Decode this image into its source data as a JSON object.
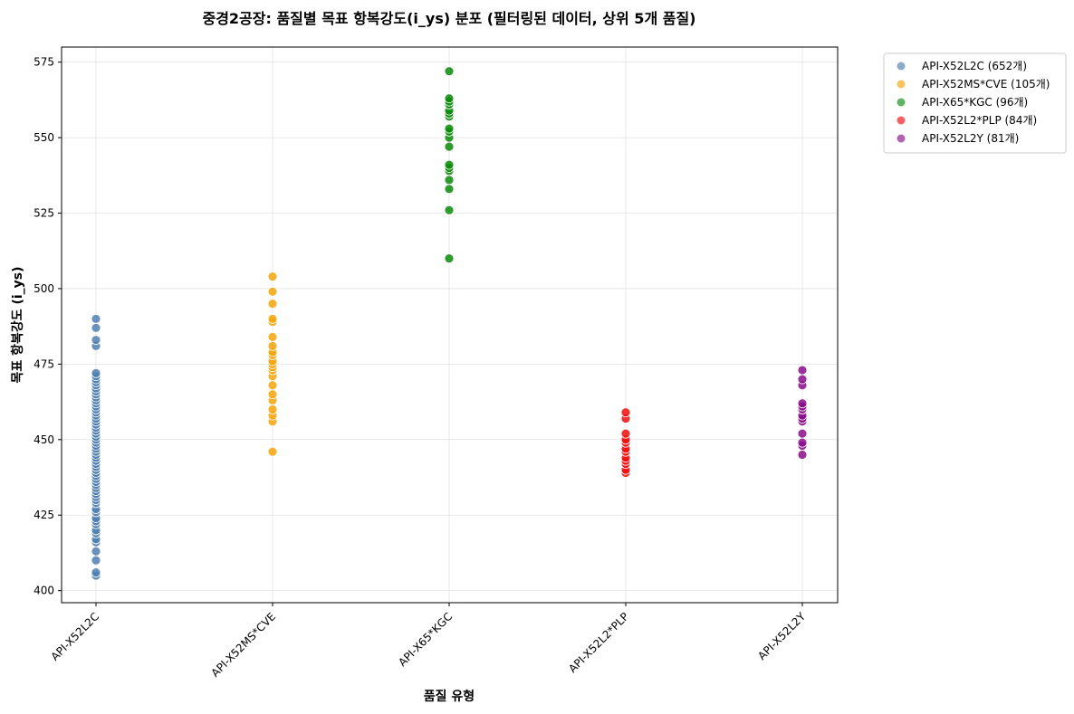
{
  "chart_data": {
    "type": "scatter",
    "title": "중경2공장: 품질별 목표 항복강도(i_ys) 분포 (필터링된 데이터, 상위 5개 품질)",
    "xlabel": "품질 유형",
    "ylabel": "목표 항복강도 (i_ys)",
    "categories": [
      "API-X52L2C",
      "API-X52MS*CVE",
      "API-X65*KGC",
      "API-X52L2*PLP",
      "API-X52L2Y"
    ],
    "ylim": [
      396,
      580
    ],
    "yticks": [
      400,
      425,
      450,
      475,
      500,
      525,
      550,
      575
    ],
    "grid": true,
    "legend_position": "outside-top-right",
    "series": [
      {
        "name": "API-X52L2C (652개)",
        "category": "API-X52L2C",
        "color": "#4f7fb0",
        "values": [
          405,
          406,
          410,
          413,
          416,
          417,
          419,
          420,
          422,
          423,
          424,
          426,
          427,
          429,
          430,
          431,
          432,
          433,
          434,
          435,
          436,
          437,
          438,
          439,
          440,
          441,
          442,
          443,
          444,
          445,
          446,
          447,
          448,
          449,
          450,
          451,
          452,
          453,
          454,
          455,
          456,
          457,
          458,
          459,
          460,
          461,
          462,
          463,
          464,
          465,
          466,
          467,
          468,
          469,
          470,
          471,
          472,
          481,
          483,
          487,
          490
        ]
      },
      {
        "name": "API-X52MS*CVE (105개)",
        "category": "API-X52MS*CVE",
        "color": "#f5a50b",
        "values": [
          446,
          456,
          458,
          460,
          463,
          465,
          468,
          471,
          473,
          474,
          475,
          476,
          478,
          479,
          481,
          484,
          489,
          490,
          495,
          499,
          504
        ]
      },
      {
        "name": "API-X65*KGC (96개)",
        "category": "API-X65*KGC",
        "color": "#0a8a0a",
        "values": [
          510,
          526,
          533,
          536,
          539,
          540,
          541,
          547,
          550,
          552,
          553,
          557,
          558,
          559,
          561,
          562,
          563,
          572
        ]
      },
      {
        "name": "API-X52L2*PLP (84개)",
        "category": "API-X52L2*PLP",
        "color": "#f20d0d",
        "values": [
          439,
          440,
          442,
          443,
          444,
          446,
          447,
          449,
          450,
          452,
          457,
          459
        ]
      },
      {
        "name": "API-X52L2Y (81개)",
        "category": "API-X52L2Y",
        "color": "#8b0c8b",
        "values": [
          445,
          448,
          449,
          452,
          456,
          457,
          458,
          460,
          461,
          462,
          468,
          470,
          473
        ]
      }
    ]
  }
}
